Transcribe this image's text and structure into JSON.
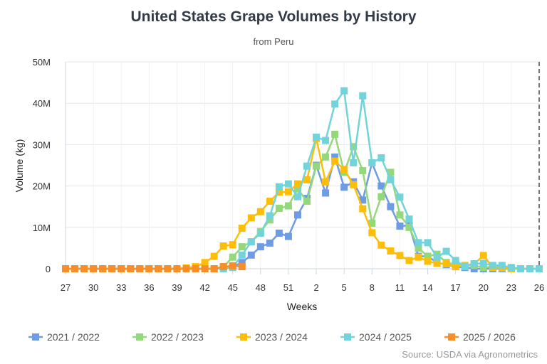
{
  "chart_data": {
    "type": "line",
    "title": "United States Grape Volumes by History",
    "subtitle": "from Peru",
    "xlabel": "Weeks",
    "ylabel": "Volume (kg)",
    "ylim": [
      0,
      50000000
    ],
    "y_ticks": [
      "0",
      "10M",
      "20M",
      "30M",
      "40M",
      "50M"
    ],
    "y_tick_values": [
      0,
      10000000,
      20000000,
      30000000,
      40000000,
      50000000
    ],
    "x": [
      27,
      28,
      29,
      30,
      31,
      32,
      33,
      34,
      35,
      36,
      37,
      38,
      39,
      40,
      41,
      42,
      43,
      44,
      45,
      46,
      47,
      48,
      49,
      50,
      51,
      52,
      1,
      2,
      3,
      4,
      5,
      6,
      7,
      8,
      9,
      10,
      11,
      12,
      13,
      14,
      15,
      16,
      17,
      18,
      19,
      20,
      21,
      22,
      23,
      24,
      25,
      26
    ],
    "x_tick_labels": [
      "27",
      "30",
      "33",
      "36",
      "39",
      "42",
      "45",
      "48",
      "51",
      "2",
      "5",
      "8",
      "11",
      "14",
      "17",
      "20",
      "23",
      "26"
    ],
    "grid": "horizontal",
    "legend_placement": "bottom",
    "current_week_marker": "dashed line at week 26",
    "units": "millions of kg",
    "series": [
      {
        "name": "2021 / 2022",
        "color": "#6e9be6",
        "values": [
          0,
          0,
          0,
          0,
          0,
          0,
          0,
          0,
          0,
          0,
          0,
          0,
          0,
          0,
          0,
          0,
          0,
          0.3,
          0.5,
          1.5,
          3.3,
          5.3,
          6.2,
          8.6,
          7.8,
          13,
          17,
          25,
          18.3,
          27,
          19.7,
          21,
          16.6,
          25.6,
          20,
          15,
          10.3,
          10.5,
          3,
          3,
          1.5,
          1,
          0.5,
          0.3,
          0,
          0,
          0,
          0,
          0,
          0,
          0,
          0
        ]
      },
      {
        "name": "2022 / 2023",
        "color": "#93d87a",
        "values": [
          0,
          0,
          0,
          0,
          0,
          0,
          0,
          0,
          0,
          0,
          0,
          0,
          0,
          0,
          0,
          0,
          0,
          0.5,
          2.8,
          5.3,
          6.5,
          9,
          11.8,
          14.6,
          15.2,
          19.3,
          16.3,
          24.8,
          27,
          32.5,
          23.3,
          29.5,
          23.7,
          11,
          17.4,
          23.3,
          13,
          10,
          5,
          3,
          3.5,
          1.5,
          1,
          0.7,
          0.8,
          0.3,
          0.5,
          0.3,
          0,
          0,
          0,
          0
        ]
      },
      {
        "name": "2023 / 2024",
        "color": "#fdbe0a",
        "values": [
          0,
          0,
          0,
          0,
          0,
          0,
          0,
          0,
          0,
          0,
          0,
          0,
          0,
          0.2,
          0.5,
          1.5,
          3,
          5.5,
          5.8,
          9.8,
          12.3,
          13.8,
          16.3,
          18.5,
          18.6,
          20.5,
          21.5,
          31.5,
          21,
          26,
          24,
          20.3,
          14.5,
          8.7,
          5.7,
          4.3,
          3.2,
          2,
          2.8,
          1.8,
          1.3,
          1.2,
          0.5,
          0.8,
          1.2,
          3.2,
          0.3,
          0.2,
          0,
          0,
          0,
          0
        ]
      },
      {
        "name": "2024 / 2025",
        "color": "#72d4da",
        "values": [
          0,
          0,
          0,
          0,
          0,
          0,
          0,
          0,
          0,
          0,
          0,
          0,
          0,
          0,
          0,
          0,
          0,
          0,
          0.3,
          3.3,
          6.5,
          8.6,
          12.8,
          19.8,
          20.5,
          17.4,
          24.8,
          31.8,
          31,
          39.8,
          43,
          25.6,
          41.8,
          25.6,
          26.8,
          21.5,
          17.3,
          12,
          6.3,
          6.3,
          2.8,
          4.2,
          2,
          0.5,
          1.2,
          1.3,
          0.8,
          0.8,
          0.3,
          0,
          0,
          0
        ]
      },
      {
        "name": "2025 / 2026",
        "color": "#f98d28",
        "values": [
          0,
          0,
          0,
          0,
          0,
          0,
          0,
          0,
          0,
          0,
          0,
          0,
          0,
          0,
          0,
          0,
          0,
          0.5,
          0.7,
          0.5,
          null,
          null,
          null,
          null,
          null,
          null,
          null,
          null,
          null,
          null,
          null,
          null,
          null,
          null,
          null,
          null,
          null,
          null,
          null,
          null,
          null,
          null,
          null,
          null,
          null,
          null,
          null,
          null,
          null,
          null,
          null,
          null
        ]
      }
    ]
  },
  "source": "Source: USDA via Agronometrics"
}
